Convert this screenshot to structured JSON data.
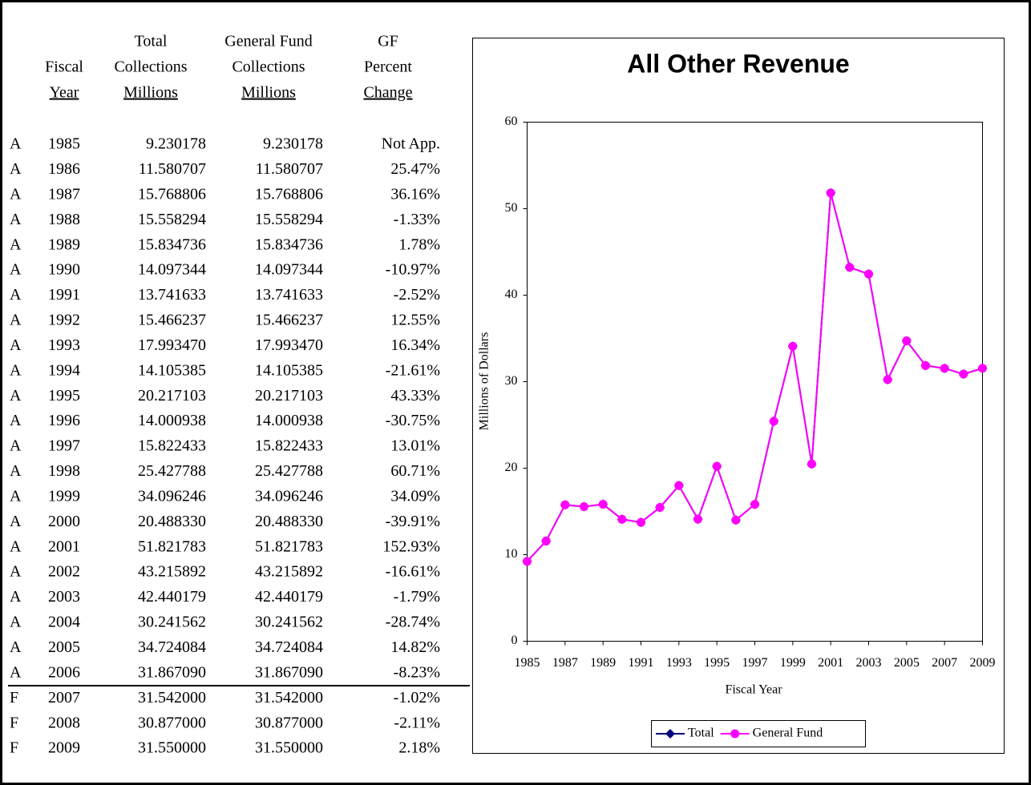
{
  "table": {
    "columns": [
      {
        "lines": [
          "Fiscal",
          "Year"
        ]
      },
      {
        "lines": [
          "Total",
          "Collections",
          "Millions"
        ]
      },
      {
        "lines": [
          "General Fund",
          "Collections",
          "Millions"
        ]
      },
      {
        "lines": [
          "GF",
          "Percent",
          "Change"
        ]
      }
    ],
    "rows": [
      [
        "A",
        "1985",
        "9.230178",
        "9.230178",
        "Not App."
      ],
      [
        "A",
        "1986",
        "11.580707",
        "11.580707",
        "25.47%"
      ],
      [
        "A",
        "1987",
        "15.768806",
        "15.768806",
        "36.16%"
      ],
      [
        "A",
        "1988",
        "15.558294",
        "15.558294",
        "-1.33%"
      ],
      [
        "A",
        "1989",
        "15.834736",
        "15.834736",
        "1.78%"
      ],
      [
        "A",
        "1990",
        "14.097344",
        "14.097344",
        "-10.97%"
      ],
      [
        "A",
        "1991",
        "13.741633",
        "13.741633",
        "-2.52%"
      ],
      [
        "A",
        "1992",
        "15.466237",
        "15.466237",
        "12.55%"
      ],
      [
        "A",
        "1993",
        "17.993470",
        "17.993470",
        "16.34%"
      ],
      [
        "A",
        "1994",
        "14.105385",
        "14.105385",
        "-21.61%"
      ],
      [
        "A",
        "1995",
        "20.217103",
        "20.217103",
        "43.33%"
      ],
      [
        "A",
        "1996",
        "14.000938",
        "14.000938",
        "-30.75%"
      ],
      [
        "A",
        "1997",
        "15.822433",
        "15.822433",
        "13.01%"
      ],
      [
        "A",
        "1998",
        "25.427788",
        "25.427788",
        "60.71%"
      ],
      [
        "A",
        "1999",
        "34.096246",
        "34.096246",
        "34.09%"
      ],
      [
        "A",
        "2000",
        "20.488330",
        "20.488330",
        "-39.91%"
      ],
      [
        "A",
        "2001",
        "51.821783",
        "51.821783",
        "152.93%"
      ],
      [
        "A",
        "2002",
        "43.215892",
        "43.215892",
        "-16.61%"
      ],
      [
        "A",
        "2003",
        "42.440179",
        "42.440179",
        "-1.79%"
      ],
      [
        "A",
        "2004",
        "30.241562",
        "30.241562",
        "-28.74%"
      ],
      [
        "A",
        "2005",
        "34.724084",
        "34.724084",
        "14.82%"
      ],
      [
        "A",
        "2006",
        "31.867090",
        "31.867090",
        "-8.23%"
      ],
      [
        "F",
        "2007",
        "31.542000",
        "31.542000",
        "-1.02%"
      ],
      [
        "F",
        "2008",
        "30.877000",
        "30.877000",
        "-2.11%"
      ],
      [
        "F",
        "2009",
        "31.550000",
        "31.550000",
        "2.18%"
      ]
    ]
  },
  "chart_data": {
    "type": "line",
    "title": "All Other Revenue",
    "x_label": "Fiscal Year",
    "y_label": "Millions of Dollars",
    "x": [
      1985,
      1986,
      1987,
      1988,
      1989,
      1990,
      1991,
      1992,
      1993,
      1994,
      1995,
      1996,
      1997,
      1998,
      1999,
      2000,
      2001,
      2002,
      2003,
      2004,
      2005,
      2006,
      2007,
      2008,
      2009
    ],
    "xlim": [
      1985,
      2009
    ],
    "xticks": [
      1985,
      1987,
      1989,
      1991,
      1993,
      1995,
      1997,
      1999,
      2001,
      2003,
      2005,
      2007,
      2009
    ],
    "ylim": [
      0,
      60
    ],
    "yticks": [
      0,
      10,
      20,
      30,
      40,
      50,
      60
    ],
    "legend": "bottom",
    "series": [
      {
        "name": "Total",
        "color": "#000080",
        "marker": "diamond",
        "values": [
          9.230178,
          11.580707,
          15.768806,
          15.558294,
          15.834736,
          14.097344,
          13.741633,
          15.466237,
          17.99347,
          14.105385,
          20.217103,
          14.000938,
          15.822433,
          25.427788,
          34.096246,
          20.48833,
          51.821783,
          43.215892,
          42.440179,
          30.241562,
          34.724084,
          31.86709,
          31.542,
          30.877,
          31.55
        ]
      },
      {
        "name": "General Fund",
        "color": "#ff00ff",
        "marker": "circle",
        "values": [
          9.230178,
          11.580707,
          15.768806,
          15.558294,
          15.834736,
          14.097344,
          13.741633,
          15.466237,
          17.99347,
          14.105385,
          20.217103,
          14.000938,
          15.822433,
          25.427788,
          34.096246,
          20.48833,
          51.821783,
          43.215892,
          42.440179,
          30.241562,
          34.724084,
          31.86709,
          31.542,
          30.877,
          31.55
        ]
      }
    ]
  }
}
